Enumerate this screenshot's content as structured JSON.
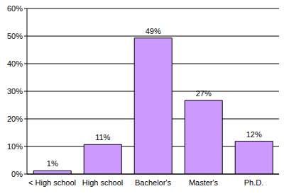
{
  "chart_data": {
    "type": "bar",
    "categories": [
      "< High school",
      "High school",
      "Bachelor's",
      "Master's",
      "Ph.D."
    ],
    "values": [
      1.2,
      10.7,
      49.3,
      26.7,
      11.9
    ],
    "value_labels": [
      "1%",
      "11%",
      "49%",
      "27%",
      "12%"
    ],
    "data_labels": true,
    "color": "#cc99ff",
    "ylim": [
      0,
      60
    ],
    "yticks": [
      {
        "value": 0,
        "label": "0%"
      },
      {
        "value": 10,
        "label": "10%"
      },
      {
        "value": 20,
        "label": "20%"
      },
      {
        "value": 30,
        "label": "30%"
      },
      {
        "value": 40,
        "label": "40%"
      },
      {
        "value": 50,
        "label": "50%"
      },
      {
        "value": 60,
        "label": "60%"
      }
    ],
    "grid": true
  }
}
